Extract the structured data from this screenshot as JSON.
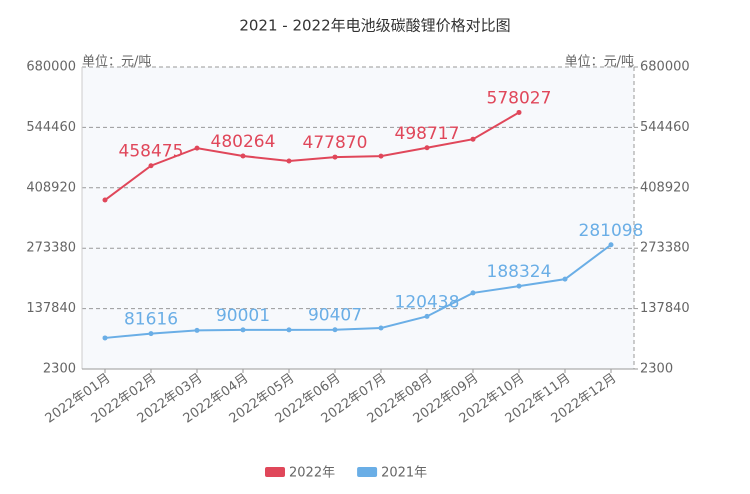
{
  "chart_data": {
    "type": "line",
    "title": "2021 - 2022年电池级碳酸锂价格对比图",
    "ylabel": "单位：元/吨",
    "y2label": "单位：元/吨",
    "categories": [
      "2022年01月",
      "2022年02月",
      "2022年03月",
      "2022年04月",
      "2022年05月",
      "2022年06月",
      "2022年07月",
      "2022年08月",
      "2022年09月",
      "2022年10月",
      "2022年11月",
      "2022年12月"
    ],
    "series": [
      {
        "name": "2022年",
        "color": "#e0475a",
        "values": [
          381500,
          458475,
          498000,
          480264,
          469000,
          477870,
          480000,
          498717,
          518000,
          578027,
          null,
          null
        ],
        "value_labels": [
          null,
          "458475",
          null,
          "480264",
          null,
          "477870",
          null,
          "498717",
          null,
          "578027",
          null,
          null
        ]
      },
      {
        "name": "2021年",
        "color": "#6aaee6",
        "values": [
          72000,
          81616,
          89000,
          90001,
          90000,
          90407,
          94300,
          120438,
          173000,
          188324,
          204000,
          281098
        ],
        "value_labels": [
          null,
          "81616",
          null,
          "90001",
          null,
          "90407",
          null,
          "120438",
          null,
          "188324",
          null,
          "281098"
        ]
      }
    ],
    "ylim": [
      2300,
      680000
    ],
    "yticks": [
      2300,
      137840,
      273380,
      408920,
      544460,
      680000
    ],
    "y2lim": [
      2300,
      680000
    ],
    "y2ticks": [
      2300,
      137840,
      273380,
      408920,
      544460,
      680000
    ],
    "grid": true,
    "legend": "bottom"
  }
}
